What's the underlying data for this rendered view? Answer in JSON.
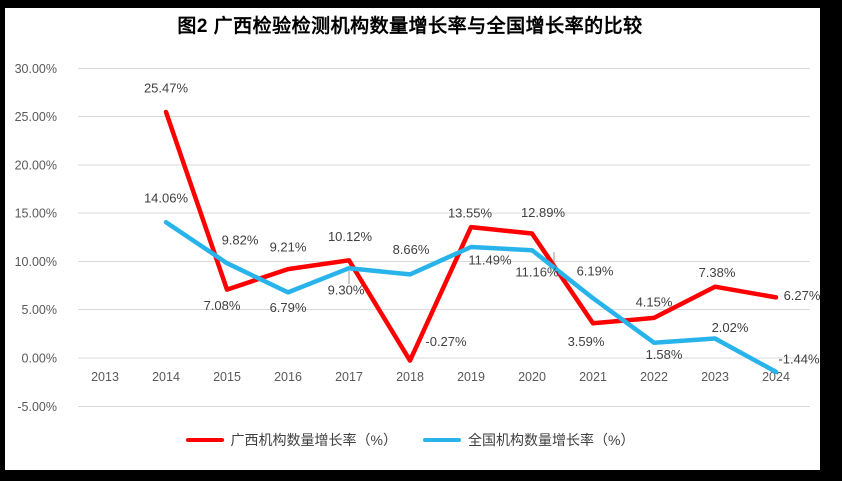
{
  "chart_data": {
    "type": "line",
    "title": "图2 广西检验检测机构数量增长率与全国增长率的比较",
    "categories": [
      "2013",
      "2014",
      "2015",
      "2016",
      "2017",
      "2018",
      "2019",
      "2020",
      "2021",
      "2022",
      "2023",
      "2024"
    ],
    "series": [
      {
        "name": "广西机构数量增长率（%）",
        "color": "#FF0000",
        "values": [
          null,
          25.47,
          7.08,
          9.21,
          10.12,
          -0.27,
          13.55,
          12.89,
          3.59,
          4.15,
          7.38,
          6.27
        ],
        "labels": [
          null,
          "25.47%",
          "7.08%",
          "9.21%",
          "10.12%",
          "-0.27%",
          "13.55%",
          "12.89%",
          "3.59%",
          "4.15%",
          "7.38%",
          "6.27%"
        ]
      },
      {
        "name": "全国机构数量增长率（%）",
        "color": "#28B4EB",
        "values": [
          null,
          14.06,
          9.82,
          6.79,
          9.3,
          8.66,
          11.49,
          11.16,
          6.19,
          1.58,
          2.02,
          -1.44
        ],
        "labels": [
          null,
          "14.06%",
          "9.82%",
          "6.79%",
          "9.30%",
          "8.66%",
          "11.49%",
          "11.16%",
          "6.19%",
          "1.58%",
          "2.02%",
          "-1.44%"
        ]
      }
    ],
    "y_axis": {
      "min": -5,
      "max": 30,
      "ticks": [
        {
          "label": "30.00%",
          "value": 30
        },
        {
          "label": "25.00%",
          "value": 25
        },
        {
          "label": "20.00%",
          "value": 20
        },
        {
          "label": "15.00%",
          "value": 15
        },
        {
          "label": "10.00%",
          "value": 10
        },
        {
          "label": "5.00%",
          "value": 5
        },
        {
          "label": "0.00%",
          "value": 0
        },
        {
          "label": "-5.00%",
          "value": -5
        }
      ]
    },
    "grid": true,
    "data_labels": true,
    "legend_position": "bottom",
    "colors": {
      "gridline": "#D9D9D9",
      "axis_text": "#595959",
      "label_text": "#404040"
    }
  }
}
